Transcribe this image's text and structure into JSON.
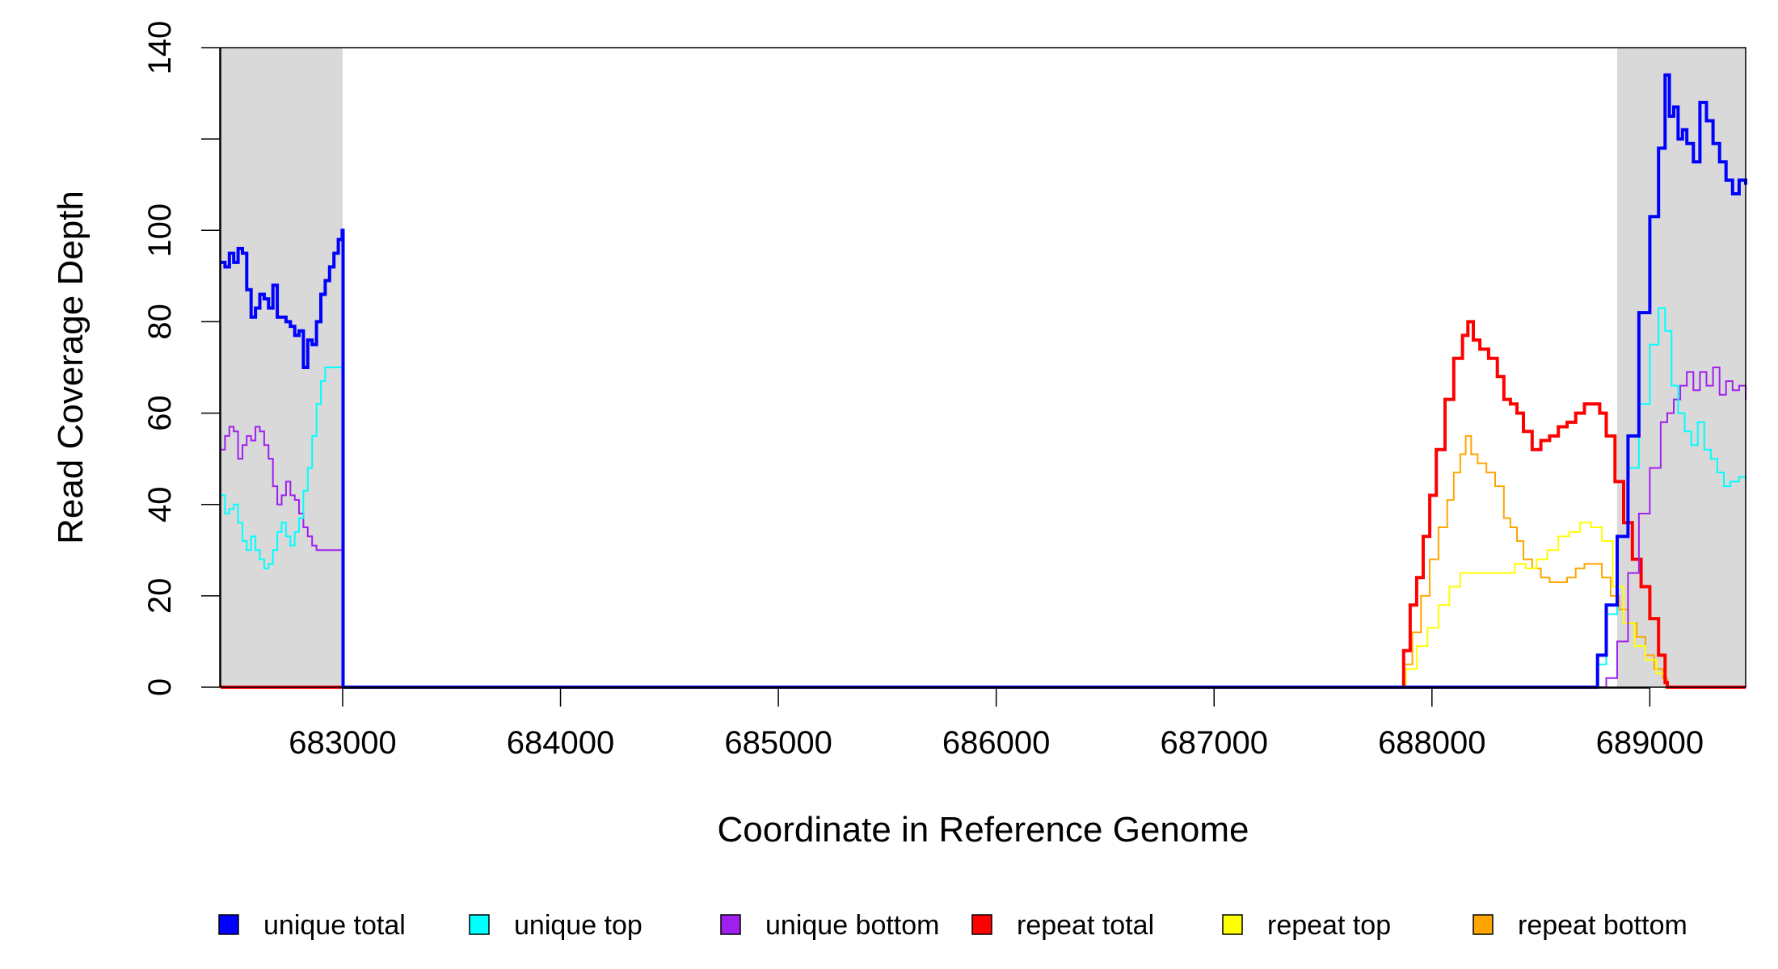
{
  "chart_data": {
    "type": "line",
    "xlabel": "Coordinate in Reference Genome",
    "ylabel": "Read Coverage Depth",
    "xlim": [
      682440,
      689440
    ],
    "ylim": [
      0,
      140
    ],
    "x_ticks": [
      683000,
      684000,
      685000,
      686000,
      687000,
      688000,
      689000
    ],
    "x_tick_labels": [
      "683000",
      "684000",
      "685000",
      "686000",
      "687000",
      "688000",
      "689000"
    ],
    "y_ticks": [
      0,
      20,
      40,
      60,
      80,
      100,
      120,
      140
    ],
    "y_tick_labels": [
      "0",
      "20",
      "40",
      "60",
      "80",
      "100",
      "",
      "140"
    ],
    "shaded_regions": [
      {
        "x0": 682440,
        "x1": 683000,
        "color": "#d9d9d9"
      },
      {
        "x0": 688850,
        "x1": 689440,
        "color": "#d9d9d9"
      }
    ],
    "legend_position": "bottom",
    "series": [
      {
        "name": "unique total",
        "color": "#0000ff",
        "width": 4,
        "points": [
          [
            682440,
            93
          ],
          [
            682460,
            92
          ],
          [
            682480,
            95
          ],
          [
            682500,
            93
          ],
          [
            682520,
            96
          ],
          [
            682540,
            95
          ],
          [
            682560,
            87
          ],
          [
            682580,
            81
          ],
          [
            682600,
            83
          ],
          [
            682620,
            86
          ],
          [
            682640,
            85
          ],
          [
            682660,
            83
          ],
          [
            682680,
            88
          ],
          [
            682700,
            81
          ],
          [
            682720,
            81
          ],
          [
            682740,
            80
          ],
          [
            682760,
            79
          ],
          [
            682780,
            77
          ],
          [
            682800,
            78
          ],
          [
            682820,
            70
          ],
          [
            682840,
            76
          ],
          [
            682860,
            75
          ],
          [
            682880,
            80
          ],
          [
            682900,
            86
          ],
          [
            682920,
            89
          ],
          [
            682940,
            92
          ],
          [
            682960,
            95
          ],
          [
            682980,
            98
          ],
          [
            682998,
            100
          ],
          [
            683002,
            0
          ],
          [
            688710,
            0
          ],
          [
            688760,
            7
          ],
          [
            688800,
            18
          ],
          [
            688850,
            33
          ],
          [
            688900,
            55
          ],
          [
            688950,
            82
          ],
          [
            689000,
            103
          ],
          [
            689040,
            118
          ],
          [
            689070,
            134
          ],
          [
            689090,
            125
          ],
          [
            689110,
            127
          ],
          [
            689130,
            120
          ],
          [
            689150,
            122
          ],
          [
            689170,
            119
          ],
          [
            689200,
            115
          ],
          [
            689230,
            128
          ],
          [
            689260,
            124
          ],
          [
            689290,
            119
          ],
          [
            689320,
            115
          ],
          [
            689350,
            111
          ],
          [
            689380,
            108
          ],
          [
            689410,
            111
          ],
          [
            689440,
            110
          ]
        ]
      },
      {
        "name": "unique top",
        "color": "#00ffff",
        "width": 2,
        "points": [
          [
            682440,
            42
          ],
          [
            682460,
            38
          ],
          [
            682480,
            39
          ],
          [
            682500,
            40
          ],
          [
            682520,
            36
          ],
          [
            682540,
            32
          ],
          [
            682560,
            30
          ],
          [
            682580,
            33
          ],
          [
            682600,
            30
          ],
          [
            682620,
            28
          ],
          [
            682640,
            26
          ],
          [
            682660,
            27
          ],
          [
            682680,
            30
          ],
          [
            682700,
            34
          ],
          [
            682720,
            36
          ],
          [
            682740,
            33
          ],
          [
            682760,
            31
          ],
          [
            682780,
            34
          ],
          [
            682800,
            37
          ],
          [
            682820,
            43
          ],
          [
            682840,
            48
          ],
          [
            682860,
            55
          ],
          [
            682880,
            62
          ],
          [
            682900,
            67
          ],
          [
            682920,
            70
          ],
          [
            682998,
            70
          ],
          [
            683002,
            0
          ],
          [
            688710,
            0
          ],
          [
            688760,
            5
          ],
          [
            688800,
            16
          ],
          [
            688850,
            33
          ],
          [
            688900,
            48
          ],
          [
            688950,
            62
          ],
          [
            689000,
            75
          ],
          [
            689040,
            83
          ],
          [
            689070,
            78
          ],
          [
            689100,
            66
          ],
          [
            689130,
            60
          ],
          [
            689160,
            56
          ],
          [
            689190,
            53
          ],
          [
            689220,
            58
          ],
          [
            689250,
            52
          ],
          [
            689280,
            50
          ],
          [
            689310,
            47
          ],
          [
            689340,
            44
          ],
          [
            689370,
            45
          ],
          [
            689410,
            46
          ],
          [
            689440,
            45
          ]
        ]
      },
      {
        "name": "unique bottom",
        "color": "#a020f0",
        "width": 2,
        "points": [
          [
            682440,
            52
          ],
          [
            682460,
            55
          ],
          [
            682480,
            57
          ],
          [
            682500,
            56
          ],
          [
            682520,
            50
          ],
          [
            682540,
            53
          ],
          [
            682560,
            55
          ],
          [
            682580,
            54
          ],
          [
            682600,
            57
          ],
          [
            682620,
            56
          ],
          [
            682640,
            53
          ],
          [
            682660,
            50
          ],
          [
            682680,
            44
          ],
          [
            682700,
            40
          ],
          [
            682720,
            42
          ],
          [
            682740,
            45
          ],
          [
            682760,
            42
          ],
          [
            682780,
            41
          ],
          [
            682800,
            38
          ],
          [
            682820,
            35
          ],
          [
            682840,
            33
          ],
          [
            682860,
            31
          ],
          [
            682880,
            30
          ],
          [
            682998,
            30
          ],
          [
            683002,
            0
          ],
          [
            688740,
            0
          ],
          [
            688800,
            2
          ],
          [
            688850,
            10
          ],
          [
            688900,
            25
          ],
          [
            688950,
            38
          ],
          [
            689000,
            48
          ],
          [
            689050,
            58
          ],
          [
            689080,
            60
          ],
          [
            689110,
            63
          ],
          [
            689140,
            66
          ],
          [
            689170,
            69
          ],
          [
            689200,
            65
          ],
          [
            689230,
            69
          ],
          [
            689260,
            66
          ],
          [
            689290,
            70
          ],
          [
            689320,
            64
          ],
          [
            689350,
            67
          ],
          [
            689380,
            65
          ],
          [
            689410,
            66
          ],
          [
            689440,
            63
          ]
        ]
      },
      {
        "name": "repeat total",
        "color": "#ff0000",
        "width": 4,
        "points": [
          [
            682440,
            0
          ],
          [
            687850,
            0
          ],
          [
            687870,
            8
          ],
          [
            687900,
            18
          ],
          [
            687930,
            24
          ],
          [
            687960,
            33
          ],
          [
            687990,
            42
          ],
          [
            688020,
            52
          ],
          [
            688060,
            63
          ],
          [
            688100,
            72
          ],
          [
            688140,
            77
          ],
          [
            688165,
            80
          ],
          [
            688190,
            76
          ],
          [
            688220,
            74
          ],
          [
            688260,
            72
          ],
          [
            688300,
            68
          ],
          [
            688330,
            63
          ],
          [
            688360,
            62
          ],
          [
            688390,
            60
          ],
          [
            688420,
            56
          ],
          [
            688460,
            52
          ],
          [
            688500,
            54
          ],
          [
            688540,
            55
          ],
          [
            688580,
            57
          ],
          [
            688620,
            58
          ],
          [
            688660,
            60
          ],
          [
            688700,
            62
          ],
          [
            688740,
            62
          ],
          [
            688770,
            60
          ],
          [
            688800,
            55
          ],
          [
            688840,
            45
          ],
          [
            688880,
            36
          ],
          [
            688920,
            28
          ],
          [
            688960,
            22
          ],
          [
            689000,
            15
          ],
          [
            689040,
            7
          ],
          [
            689070,
            1
          ],
          [
            689080,
            0
          ],
          [
            689440,
            0
          ]
        ]
      },
      {
        "name": "repeat top",
        "color": "#ffff00",
        "width": 2,
        "points": [
          [
            682440,
            0
          ],
          [
            687850,
            0
          ],
          [
            687880,
            4
          ],
          [
            687930,
            9
          ],
          [
            687980,
            13
          ],
          [
            688030,
            18
          ],
          [
            688080,
            22
          ],
          [
            688130,
            25
          ],
          [
            688180,
            25
          ],
          [
            688230,
            25
          ],
          [
            688280,
            25
          ],
          [
            688330,
            25
          ],
          [
            688380,
            27
          ],
          [
            688430,
            26
          ],
          [
            688480,
            28
          ],
          [
            688530,
            30
          ],
          [
            688580,
            33
          ],
          [
            688630,
            34
          ],
          [
            688680,
            36
          ],
          [
            688730,
            35
          ],
          [
            688780,
            32
          ],
          [
            688830,
            22
          ],
          [
            688880,
            14
          ],
          [
            688930,
            9
          ],
          [
            688980,
            6
          ],
          [
            689030,
            3
          ],
          [
            689070,
            1
          ],
          [
            689080,
            0
          ],
          [
            689440,
            0
          ]
        ]
      },
      {
        "name": "repeat bottom",
        "color": "#ffa500",
        "width": 2,
        "points": [
          [
            682440,
            0
          ],
          [
            687850,
            0
          ],
          [
            687870,
            5
          ],
          [
            687910,
            12
          ],
          [
            687950,
            20
          ],
          [
            687990,
            28
          ],
          [
            688030,
            35
          ],
          [
            688070,
            41
          ],
          [
            688100,
            47
          ],
          [
            688130,
            51
          ],
          [
            688155,
            55
          ],
          [
            688180,
            51
          ],
          [
            688210,
            49
          ],
          [
            688250,
            47
          ],
          [
            688290,
            44
          ],
          [
            688330,
            37
          ],
          [
            688360,
            35
          ],
          [
            688390,
            32
          ],
          [
            688420,
            28
          ],
          [
            688460,
            26
          ],
          [
            688500,
            24
          ],
          [
            688540,
            23
          ],
          [
            688580,
            23
          ],
          [
            688620,
            24
          ],
          [
            688660,
            26
          ],
          [
            688700,
            27
          ],
          [
            688740,
            27
          ],
          [
            688780,
            24
          ],
          [
            688820,
            20
          ],
          [
            688860,
            17
          ],
          [
            688900,
            14
          ],
          [
            688940,
            11
          ],
          [
            688980,
            7
          ],
          [
            689020,
            4
          ],
          [
            689060,
            2
          ],
          [
            689080,
            0
          ],
          [
            689440,
            0
          ]
        ]
      }
    ]
  }
}
